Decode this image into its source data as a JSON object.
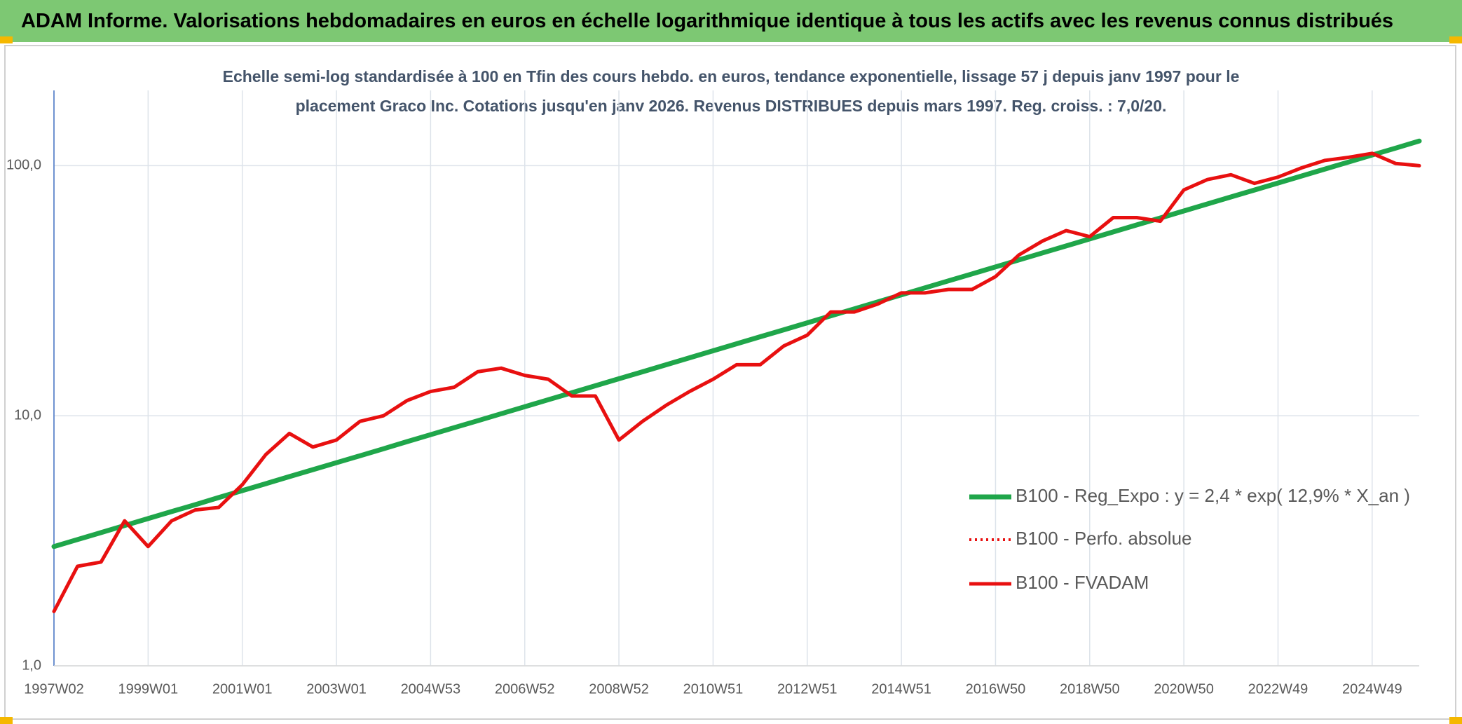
{
  "chart_data": {
    "type": "line",
    "title": "ADAM Informe. Valorisations hebdomadaires en euros en échelle logarithmique identique à tous les actifs avec les revenus connus distribués",
    "subtitle": [
      "Echelle semi-log standardisée à 100 en Tfin des cours hebdo. en euros, tendance exponentielle, lissage 57 j depuis janv 1997 pour le",
      "placement Graco Inc. Cotations jusqu'en janv 2026. Revenus DISTRIBUES depuis mars 1997. Reg. croiss. : 7,0/20."
    ],
    "categories": [
      "1997W02",
      null,
      null,
      null,
      "1999W01",
      null,
      null,
      null,
      "2001W01",
      null,
      null,
      null,
      "2003W01",
      null,
      null,
      null,
      "2004W53",
      null,
      null,
      null,
      "2006W52",
      null,
      null,
      null,
      "2008W52",
      null,
      null,
      null,
      "2010W51",
      null,
      null,
      null,
      "2012W51",
      null,
      null,
      null,
      "2014W51",
      null,
      null,
      null,
      "2016W50",
      null,
      null,
      null,
      "2018W50",
      null,
      null,
      null,
      "2020W50",
      null,
      null,
      null,
      "2022W49",
      null,
      null,
      null,
      "2024W49",
      null,
      null
    ],
    "series": [
      {
        "name": "B100 - Reg_Expo : y = 2,4 * exp( 12,9% *  X_an )",
        "color": "#1fa64a",
        "style": "solid",
        "values": [
          3.0,
          3.2,
          3.41,
          3.64,
          3.88,
          4.14,
          4.41,
          4.71,
          5.02,
          5.35,
          5.71,
          6.09,
          6.49,
          6.92,
          7.38,
          7.88,
          8.4,
          8.96,
          9.55,
          10.19,
          10.87,
          11.59,
          12.36,
          13.18,
          14.06,
          14.99,
          15.99,
          17.05,
          18.19,
          19.4,
          20.69,
          22.06,
          23.53,
          25.1,
          26.76,
          28.54,
          30.44,
          32.47,
          34.63,
          36.93,
          39.38,
          42.0,
          44.8,
          47.77,
          50.95,
          54.34,
          57.95,
          61.81,
          65.92,
          70.3,
          74.97,
          79.96,
          85.27,
          90.94,
          96.99,
          103.4,
          110.3,
          117.6,
          125.5
        ]
      },
      {
        "name": "B100 - Perfo. absolue",
        "color": "#e81010",
        "style": "dotted",
        "values": [
          1.65,
          2.5,
          2.6,
          3.8,
          3.0,
          3.8,
          4.2,
          4.3,
          5.3,
          7.0,
          8.5,
          7.5,
          8.0,
          9.5,
          10,
          11.5,
          12.5,
          13,
          15,
          15.5,
          14.5,
          14,
          12,
          12,
          8,
          9.5,
          11,
          12.5,
          14,
          16,
          16,
          19,
          21,
          26,
          26,
          28,
          31,
          31,
          32,
          32,
          36,
          44,
          50,
          55,
          52,
          62,
          62,
          60,
          80,
          88,
          92,
          85,
          90,
          98,
          105,
          108,
          112,
          102,
          100
        ]
      },
      {
        "name": "B100 - FVADAM",
        "color": "#e81010",
        "style": "solid",
        "values": [
          1.65,
          2.5,
          2.6,
          3.8,
          3.0,
          3.8,
          4.2,
          4.3,
          5.3,
          7.0,
          8.5,
          7.5,
          8.0,
          9.5,
          10,
          11.5,
          12.5,
          13,
          15,
          15.5,
          14.5,
          14,
          12,
          12,
          8,
          9.5,
          11,
          12.5,
          14,
          16,
          16,
          19,
          21,
          26,
          26,
          28,
          31,
          31,
          32,
          32,
          36,
          44,
          50,
          55,
          52,
          62,
          62,
          60,
          80,
          88,
          92,
          85,
          90,
          98,
          105,
          108,
          112,
          102,
          100
        ]
      }
    ],
    "log_scale": true,
    "grid": true,
    "legend": "lower right",
    "ylim": [
      1,
      200
    ],
    "yticks": [
      {
        "value": 1,
        "label": "1,0"
      },
      {
        "value": 10,
        "label": "10,0"
      },
      {
        "value": 100,
        "label": "100,0"
      }
    ]
  }
}
